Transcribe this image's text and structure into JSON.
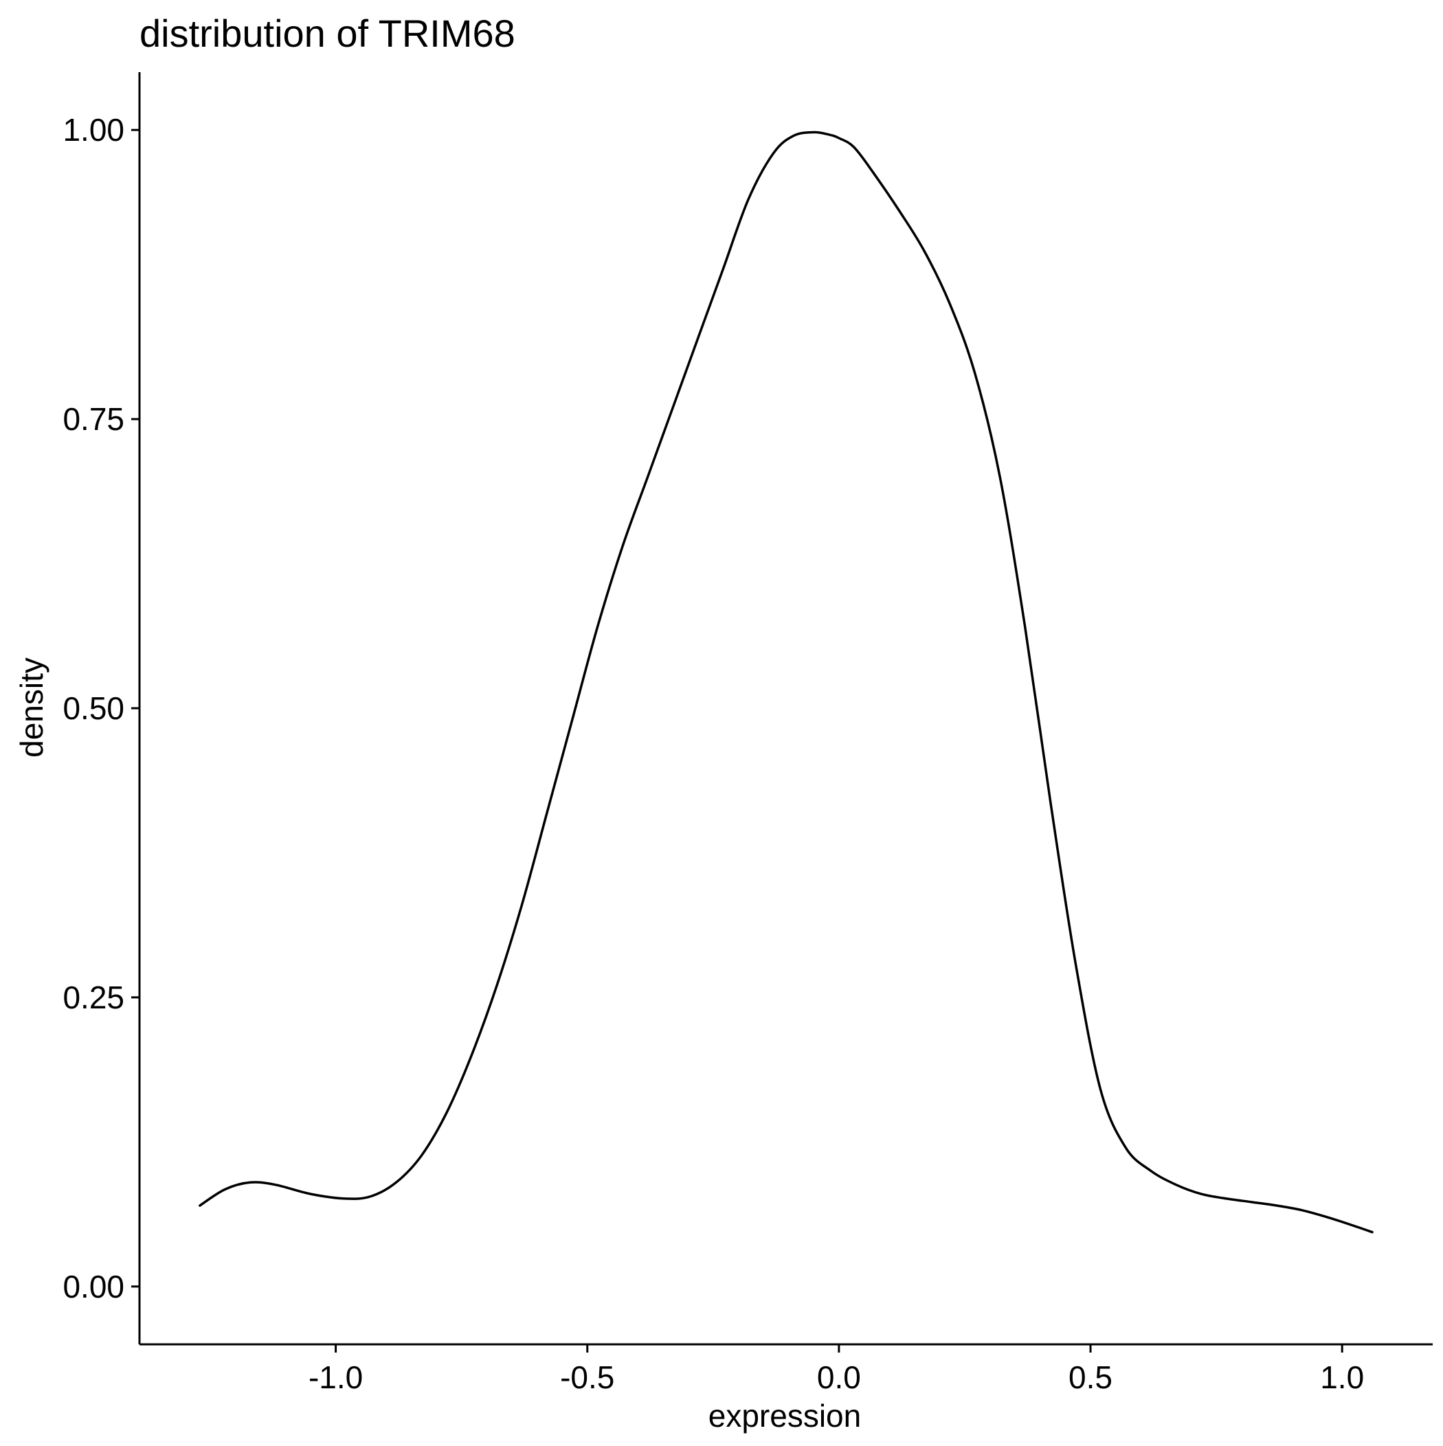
{
  "chart_data": {
    "type": "line",
    "title": "distribution of TRIM68",
    "xlabel": "expression",
    "ylabel": "density",
    "xlim": [
      -1.39,
      1.18
    ],
    "ylim": [
      -0.05,
      1.05
    ],
    "x_ticks": [
      -1.0,
      -0.5,
      0.0,
      0.5,
      1.0
    ],
    "x_tick_labels": [
      "-1.0",
      "-0.5",
      "0.0",
      "0.5",
      "1.0"
    ],
    "y_ticks": [
      0.0,
      0.25,
      0.5,
      0.75,
      1.0
    ],
    "y_tick_labels": [
      "0.00",
      "0.25",
      "0.50",
      "0.75",
      "1.00"
    ],
    "grid": false,
    "line_color": "#000000",
    "series": [
      {
        "x": [
          -1.27,
          -1.22,
          -1.17,
          -1.12,
          -1.05,
          -0.98,
          -0.93,
          -0.88,
          -0.83,
          -0.78,
          -0.73,
          -0.68,
          -0.63,
          -0.58,
          -0.53,
          -0.48,
          -0.43,
          -0.38,
          -0.33,
          -0.28,
          -0.23,
          -0.18,
          -0.13,
          -0.09,
          -0.05,
          -0.02,
          0.0,
          0.03,
          0.07,
          0.12,
          0.17,
          0.22,
          0.27,
          0.32,
          0.37,
          0.42,
          0.47,
          0.52,
          0.57,
          0.62,
          0.67,
          0.72,
          0.77,
          0.82,
          0.87,
          0.92,
          0.97,
          1.02,
          1.06
        ],
        "y": [
          0.07,
          0.084,
          0.09,
          0.088,
          0.08,
          0.076,
          0.078,
          0.09,
          0.113,
          0.15,
          0.2,
          0.26,
          0.33,
          0.41,
          0.49,
          0.57,
          0.64,
          0.7,
          0.76,
          0.82,
          0.88,
          0.94,
          0.98,
          0.995,
          0.998,
          0.996,
          0.993,
          0.985,
          0.962,
          0.93,
          0.895,
          0.85,
          0.79,
          0.7,
          0.57,
          0.42,
          0.28,
          0.17,
          0.12,
          0.1,
          0.088,
          0.08,
          0.076,
          0.073,
          0.07,
          0.066,
          0.06,
          0.053,
          0.047
        ]
      }
    ]
  }
}
